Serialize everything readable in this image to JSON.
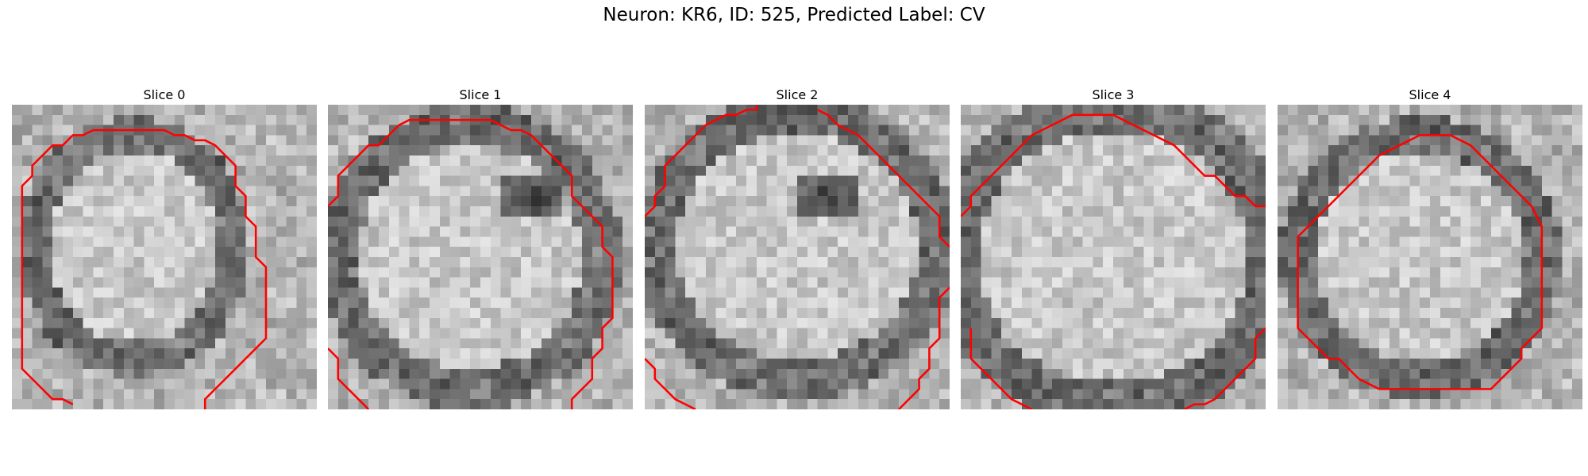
{
  "figure": {
    "title": "Neuron: KR6, ID: 525, Predicted Label: CV",
    "contour_color": "#ff0000"
  },
  "panels": [
    {
      "title": "Slice 0"
    },
    {
      "title": "Slice 1"
    },
    {
      "title": "Slice 2"
    },
    {
      "title": "Slice 3"
    },
    {
      "title": "Slice 4"
    }
  ]
}
